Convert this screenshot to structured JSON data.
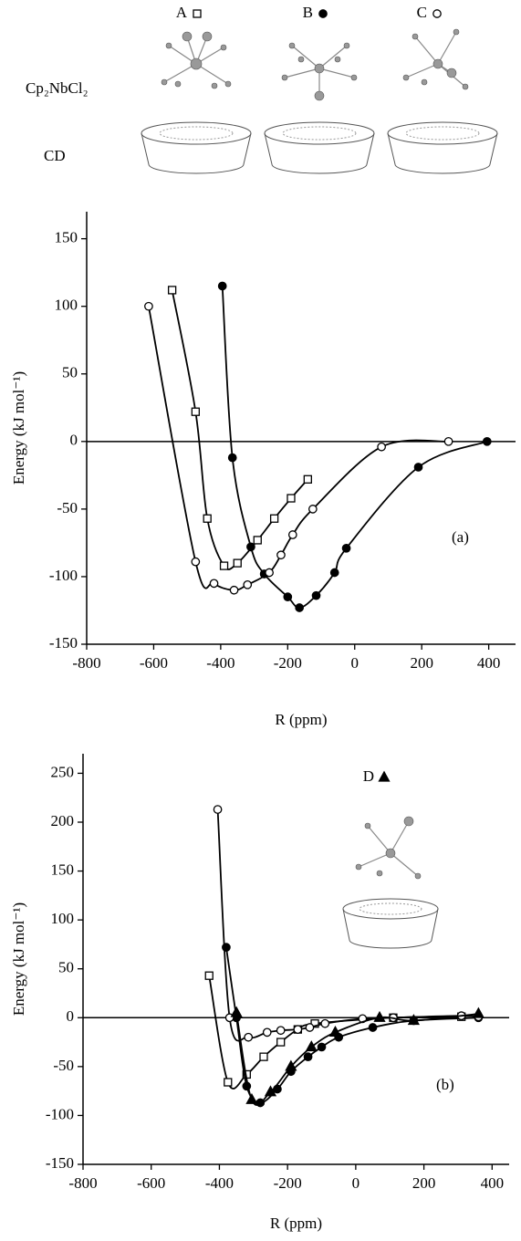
{
  "schematic": {
    "molecule_label": "Cp₂NbCl₂",
    "host_label": "CD"
  },
  "chart_data": [
    {
      "type": "line",
      "x_label": "R (ppm)",
      "y_label": "Energy (kJ mol⁻¹)",
      "annotation": "(a)",
      "xlim": [
        -800,
        480
      ],
      "ylim": [
        -150,
        170
      ],
      "xticks": [
        -800,
        -600,
        -400,
        -200,
        0,
        200,
        400
      ],
      "yticks": [
        -150,
        -100,
        -50,
        0,
        50,
        100,
        150
      ],
      "series": [
        {
          "name": "A",
          "color": "#000",
          "marker": "square",
          "filled": false,
          "x": [
            -545,
            -475,
            -440,
            -390,
            -350,
            -290,
            -240,
            -190,
            -140
          ],
          "values": [
            112,
            22,
            -57,
            -92,
            -90,
            -73,
            -57,
            -42,
            -28
          ]
        },
        {
          "name": "B",
          "color": "#000",
          "marker": "circle",
          "filled": true,
          "x": [
            -395,
            -365,
            -310,
            -270,
            -200,
            -165,
            -115,
            -60,
            -25,
            190,
            395
          ],
          "values": [
            115,
            -12,
            -78,
            -98,
            -115,
            -123,
            -114,
            -97,
            -79,
            -19,
            0
          ]
        },
        {
          "name": "C",
          "color": "#000",
          "marker": "circle",
          "filled": false,
          "x": [
            -615,
            -475,
            -420,
            -360,
            -320,
            -255,
            -220,
            -185,
            -125,
            80,
            280
          ],
          "values": [
            100,
            -89,
            -105,
            -110,
            -106,
            -97,
            -84,
            -69,
            -50,
            -4,
            0
          ]
        }
      ]
    },
    {
      "type": "line",
      "x_label": "R (ppm)",
      "y_label": "Energy (kJ mol⁻¹)",
      "annotation": "(b)",
      "xlim": [
        -800,
        450
      ],
      "ylim": [
        -150,
        270
      ],
      "xticks": [
        -800,
        -600,
        -400,
        -200,
        0,
        200,
        400
      ],
      "yticks": [
        -150,
        -100,
        -50,
        0,
        50,
        100,
        150,
        200,
        250
      ],
      "series": [
        {
          "color": "#000",
          "marker": "square",
          "filled": false,
          "x": [
            -430,
            -375,
            -320,
            -270,
            -220,
            -170,
            -120,
            110,
            310
          ],
          "values": [
            43,
            -66,
            -58,
            -40,
            -25,
            -12,
            -6,
            0,
            1
          ]
        },
        {
          "color": "#000",
          "marker": "circle",
          "filled": true,
          "x": [
            -380,
            -350,
            -320,
            -280,
            -230,
            -190,
            -140,
            -100,
            -50,
            50,
            170,
            360
          ],
          "values": [
            72,
            0,
            -70,
            -87,
            -73,
            -55,
            -40,
            -30,
            -20,
            -10,
            -3,
            0
          ]
        },
        {
          "color": "#000",
          "marker": "circle",
          "filled": false,
          "x": [
            -405,
            -370,
            -315,
            -260,
            -220,
            -170,
            -135,
            -90,
            20,
            110,
            310,
            360
          ],
          "values": [
            213,
            0,
            -20,
            -15,
            -13,
            -12,
            -10,
            -6,
            -1,
            0,
            2,
            1
          ]
        },
        {
          "name": "D",
          "color": "#000",
          "marker": "triangle",
          "filled": true,
          "x": [
            -350,
            -305,
            -250,
            -190,
            -130,
            -60,
            70,
            170,
            360
          ],
          "values": [
            5,
            -84,
            -76,
            -50,
            -30,
            -15,
            0,
            -3,
            4
          ]
        }
      ]
    }
  ]
}
